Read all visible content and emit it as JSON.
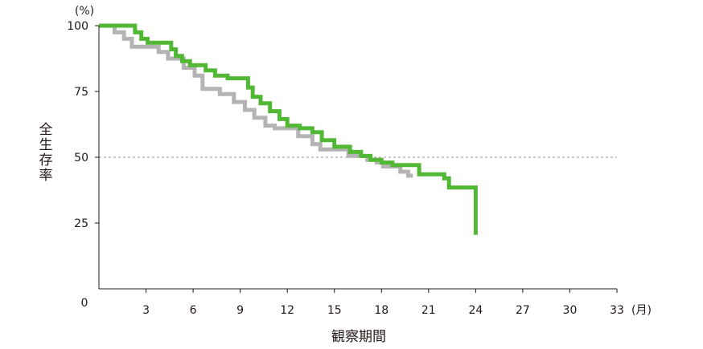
{
  "chart_data": {
    "type": "line",
    "subtype": "kaplan-meier step curve",
    "ylabel": "全生存率",
    "xlabel": "観察期間",
    "y_unit": "(%)",
    "x_unit": "(月)",
    "xlim": [
      0,
      33
    ],
    "ylim": [
      0,
      100
    ],
    "x_ticks": [
      "3",
      "6",
      "9",
      "12",
      "15",
      "18",
      "21",
      "24",
      "27",
      "30",
      "33"
    ],
    "y_ticks": [
      "100",
      "75",
      "50",
      "25"
    ],
    "origin_label": "0",
    "reference_line": {
      "y": 50,
      "style": "dashed",
      "color": "#9a9a9a"
    },
    "grid": false,
    "series": [
      {
        "color": "#b4b4b4",
        "points": [
          [
            0,
            100
          ],
          [
            1.0,
            100
          ],
          [
            1.0,
            97.5
          ],
          [
            1.6,
            97.5
          ],
          [
            1.6,
            95
          ],
          [
            2.1,
            95
          ],
          [
            2.1,
            92
          ],
          [
            3.8,
            92
          ],
          [
            3.8,
            90
          ],
          [
            4.4,
            90
          ],
          [
            4.4,
            87.5
          ],
          [
            5.4,
            87.5
          ],
          [
            5.4,
            84
          ],
          [
            6.1,
            84
          ],
          [
            6.1,
            81
          ],
          [
            6.6,
            81
          ],
          [
            6.6,
            76
          ],
          [
            7.7,
            76
          ],
          [
            7.7,
            74
          ],
          [
            8.6,
            74
          ],
          [
            8.6,
            71
          ],
          [
            9.3,
            71
          ],
          [
            9.3,
            68
          ],
          [
            9.9,
            68
          ],
          [
            9.9,
            65
          ],
          [
            10.6,
            65
          ],
          [
            10.6,
            62
          ],
          [
            11.2,
            62
          ],
          [
            11.2,
            61
          ],
          [
            12.7,
            61
          ],
          [
            12.7,
            58
          ],
          [
            13.6,
            58
          ],
          [
            13.6,
            55
          ],
          [
            14.1,
            55
          ],
          [
            14.1,
            53
          ],
          [
            15.9,
            53
          ],
          [
            15.9,
            50.5
          ],
          [
            17.1,
            50.5
          ],
          [
            17.1,
            49
          ],
          [
            17.7,
            49
          ],
          [
            17.7,
            48
          ],
          [
            18.1,
            48
          ],
          [
            18.1,
            46.5
          ],
          [
            19.2,
            46.5
          ],
          [
            19.2,
            44.5
          ],
          [
            19.7,
            44.5
          ],
          [
            19.7,
            43
          ],
          [
            20.0,
            43
          ]
        ]
      },
      {
        "color": "#52b734",
        "points": [
          [
            0,
            100
          ],
          [
            2.3,
            100
          ],
          [
            2.3,
            97.5
          ],
          [
            2.7,
            97.5
          ],
          [
            2.7,
            95
          ],
          [
            3.1,
            95
          ],
          [
            3.1,
            93.5
          ],
          [
            4.6,
            93.5
          ],
          [
            4.6,
            91
          ],
          [
            4.9,
            91
          ],
          [
            4.9,
            88.5
          ],
          [
            5.3,
            88.5
          ],
          [
            5.3,
            86.5
          ],
          [
            5.8,
            86.5
          ],
          [
            5.8,
            85
          ],
          [
            6.8,
            85
          ],
          [
            6.8,
            83
          ],
          [
            7.4,
            83
          ],
          [
            7.4,
            81
          ],
          [
            8.2,
            81
          ],
          [
            8.2,
            80
          ],
          [
            9.5,
            80
          ],
          [
            9.5,
            76.5
          ],
          [
            9.8,
            76.5
          ],
          [
            9.8,
            73
          ],
          [
            10.3,
            73
          ],
          [
            10.3,
            70.5
          ],
          [
            10.9,
            70.5
          ],
          [
            10.9,
            67.5
          ],
          [
            11.5,
            67.5
          ],
          [
            11.5,
            64.5
          ],
          [
            12.0,
            64.5
          ],
          [
            12.0,
            62
          ],
          [
            12.8,
            62
          ],
          [
            12.8,
            61
          ],
          [
            13.6,
            61
          ],
          [
            13.6,
            59.5
          ],
          [
            14.2,
            59.5
          ],
          [
            14.2,
            56.5
          ],
          [
            15.0,
            56.5
          ],
          [
            15.0,
            54
          ],
          [
            16.0,
            54
          ],
          [
            16.0,
            52
          ],
          [
            16.7,
            52
          ],
          [
            16.7,
            50.5
          ],
          [
            17.3,
            50.5
          ],
          [
            17.3,
            49
          ],
          [
            18.0,
            49
          ],
          [
            18.0,
            48
          ],
          [
            18.7,
            48
          ],
          [
            18.7,
            47
          ],
          [
            20.4,
            47
          ],
          [
            20.4,
            43.5
          ],
          [
            22.0,
            43.5
          ],
          [
            22.0,
            42
          ],
          [
            22.3,
            42
          ],
          [
            22.3,
            38.5
          ],
          [
            24.0,
            38.5
          ],
          [
            24.0,
            20.5
          ]
        ]
      }
    ]
  }
}
